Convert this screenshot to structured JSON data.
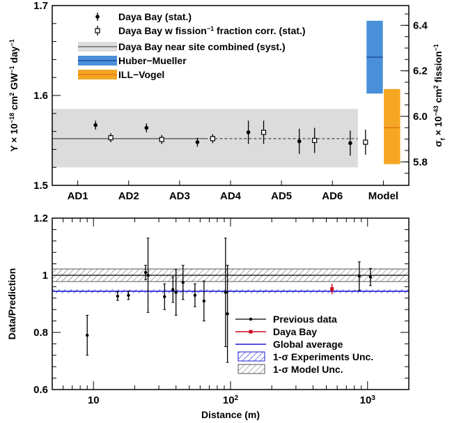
{
  "chart_data": [
    {
      "type": "scatter",
      "panel": "top",
      "categories": [
        "AD1",
        "AD2",
        "AD3",
        "AD4",
        "AD5",
        "AD6",
        "Model"
      ],
      "ylabel_left": "Y × 10⁻¹⁸ cm² GW⁻¹ day⁻¹",
      "ylabel_right": "σ_f × 10⁻⁴³ cm² fission⁻¹",
      "ylim": [
        1.5,
        1.7
      ],
      "yticks": [
        "1.5",
        "1.6",
        "1.7"
      ],
      "yticks_right": [
        "5.8",
        "6.0",
        "6.2",
        "6.4"
      ],
      "yticks_right_values": [
        5.8,
        6.0,
        6.2,
        6.4
      ],
      "right_axis_map": [
        [
          1.5,
          5.6967
        ],
        [
          1.7,
          6.4867
        ]
      ],
      "series": [
        {
          "name": "Daya Bay (stat.)",
          "x": [
            0.85,
            1.85,
            2.85,
            3.85,
            4.85,
            5.85
          ],
          "y": [
            1.567,
            1.564,
            1.548,
            1.559,
            1.549,
            1.547
          ],
          "err": [
            0.005,
            0.005,
            0.005,
            0.013,
            0.014,
            0.014
          ]
        },
        {
          "name": "Daya Bay w fission⁻¹ fraction corr. (stat.)",
          "x": [
            1.15,
            2.15,
            3.15,
            4.15,
            5.15,
            6.15
          ],
          "y": [
            1.553,
            1.551,
            1.552,
            1.559,
            1.55,
            1.548
          ],
          "err": [
            0.005,
            0.005,
            0.005,
            0.013,
            0.014,
            0.014
          ]
        },
        {
          "name": "Daya Bay near site combined (syst.)",
          "value": 1.552,
          "band": [
            1.52,
            1.585
          ]
        },
        {
          "name": "Huber−Mueller",
          "value": 6.26,
          "band": [
            6.1,
            6.42
          ]
        },
        {
          "name": "ILL−Vogel",
          "value": 5.95,
          "band": [
            5.79,
            6.12
          ]
        }
      ]
    },
    {
      "type": "scatter",
      "panel": "bottom",
      "xlabel": "Distance (m)",
      "ylabel": "Data/Prediction",
      "xscale": "log",
      "xlim": [
        5,
        2000
      ],
      "ylim": [
        0.6,
        1.2
      ],
      "xticks": [
        "10",
        "10²",
        "10³"
      ],
      "yticks": [
        "0.6",
        "0.8",
        "1",
        "1.2"
      ],
      "series": [
        {
          "name": "Previous data",
          "x": [
            9,
            15,
            18,
            24,
            25,
            33,
            38,
            40,
            45,
            55,
            64,
            92,
            95
          ],
          "y": [
            0.79,
            0.927,
            0.93,
            1.01,
            1.0,
            0.925,
            0.95,
            0.94,
            0.975,
            0.93,
            0.91,
            0.94,
            0.865
          ],
          "err": [
            0.07,
            0.015,
            0.015,
            0.025,
            0.13,
            0.045,
            0.045,
            0.08,
            0.06,
            0.04,
            0.07,
            0.19,
            0.17
          ]
        },
        {
          "name": "Previous data (far)",
          "x": [
            870,
            1050
          ],
          "y": [
            0.997,
            0.994
          ],
          "err": [
            0.05,
            0.03
          ]
        },
        {
          "name": "Daya Bay",
          "x": [
            550
          ],
          "y": [
            0.952
          ],
          "err": [
            0.018
          ]
        },
        {
          "name": "Global average",
          "value": 0.944
        },
        {
          "name": "1-σ Experiments Unc.",
          "band": [
            0.937,
            0.951
          ]
        },
        {
          "name": "1-σ Model Unc.",
          "band": [
            0.978,
            1.022
          ]
        }
      ],
      "reference_line": 1.0
    }
  ],
  "legend_top": [
    "Daya Bay (stat.)",
    "Daya Bay w fission⁻¹ fraction corr. (stat.)",
    "Daya Bay near site combined (syst.)",
    "Huber−Mueller",
    "ILL−Vogel"
  ],
  "legend_bottom": [
    "Previous data",
    "Daya Bay",
    "Global average",
    "1-σ Experiments Unc.",
    "1-σ Model Unc."
  ],
  "colors": {
    "syst_band": "#dcdcdc",
    "huber": "#4a90d9",
    "huber_line": "#1a4fa0",
    "ill": "#f5a623",
    "ill_line": "#e07a10",
    "daya_bay": "#d0021b",
    "global": "#1a1ad6"
  }
}
